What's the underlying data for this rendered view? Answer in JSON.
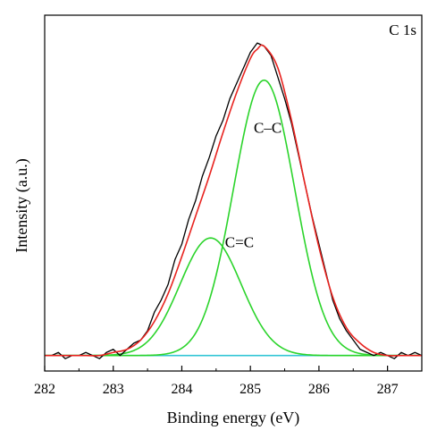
{
  "chart_data": {
    "type": "line",
    "title": "",
    "panel_label": "C 1s",
    "xlabel": "Binding energy (eV)",
    "ylabel": "Intensity (a.u.)",
    "xlim": [
      282,
      287.5
    ],
    "ylim": [
      -0.05,
      1.1
    ],
    "x_ticks": [
      282,
      283,
      284,
      285,
      286,
      287
    ],
    "x_tick_labels": [
      "282",
      "283",
      "284",
      "285",
      "286",
      "287"
    ],
    "y_ticks_shown": false,
    "grid": false,
    "legend": "none",
    "colors": {
      "raw": "#000000",
      "envelope": "#e8231f",
      "components": "#2bd42b",
      "baseline": "#33c6d6"
    },
    "annotations": [
      {
        "text": "C–C",
        "x": 285.05,
        "y": 0.72
      },
      {
        "text": "C=C",
        "x": 284.63,
        "y": 0.35
      }
    ],
    "baseline": {
      "x": [
        282,
        287.5
      ],
      "y": [
        0,
        0
      ]
    },
    "components": [
      {
        "label": "C–C",
        "center": 285.2,
        "fwhm": 1.05,
        "height": 0.89
      },
      {
        "label": "C=C",
        "center": 284.42,
        "fwhm": 1.05,
        "height": 0.38
      }
    ],
    "series": [
      {
        "role": "raw",
        "x": [
          282.0,
          282.1,
          282.2,
          282.3,
          282.4,
          282.5,
          282.6,
          282.7,
          282.8,
          282.9,
          283.0,
          283.1,
          283.2,
          283.3,
          283.4,
          283.5,
          283.6,
          283.7,
          283.8,
          283.9,
          284.0,
          284.1,
          284.2,
          284.3,
          284.4,
          284.5,
          284.6,
          284.7,
          284.8,
          284.9,
          285.0,
          285.1,
          285.2,
          285.3,
          285.4,
          285.5,
          285.6,
          285.7,
          285.8,
          285.9,
          286.0,
          286.1,
          286.2,
          286.3,
          286.4,
          286.5,
          286.6,
          286.7,
          286.8,
          286.9,
          287.0,
          287.1,
          287.2,
          287.3,
          287.4,
          287.5
        ],
        "y": [
          0.0,
          0.0,
          0.01,
          -0.01,
          0.0,
          0.0,
          0.01,
          0.0,
          -0.01,
          0.01,
          0.02,
          0.0,
          0.02,
          0.04,
          0.05,
          0.08,
          0.14,
          0.18,
          0.23,
          0.31,
          0.36,
          0.44,
          0.5,
          0.58,
          0.64,
          0.71,
          0.76,
          0.83,
          0.88,
          0.93,
          0.98,
          1.01,
          1.0,
          0.97,
          0.9,
          0.83,
          0.75,
          0.65,
          0.55,
          0.45,
          0.36,
          0.27,
          0.18,
          0.12,
          0.08,
          0.05,
          0.02,
          0.01,
          0.0,
          0.01,
          0.0,
          -0.01,
          0.01,
          0.0,
          0.01,
          0.0
        ]
      },
      {
        "role": "envelope",
        "x": [
          282.0,
          282.2,
          282.4,
          282.6,
          282.8,
          283.0,
          283.2,
          283.4,
          283.6,
          283.8,
          284.0,
          284.2,
          284.4,
          284.6,
          284.8,
          285.0,
          285.1,
          285.2,
          285.4,
          285.6,
          285.8,
          286.0,
          286.2,
          286.4,
          286.6,
          286.8,
          287.0,
          287.2,
          287.5
        ],
        "y": [
          0.0,
          0.0,
          0.0,
          0.0,
          0.0,
          0.01,
          0.02,
          0.05,
          0.11,
          0.2,
          0.32,
          0.45,
          0.58,
          0.72,
          0.85,
          0.96,
          0.99,
          1.0,
          0.93,
          0.76,
          0.55,
          0.35,
          0.19,
          0.09,
          0.04,
          0.01,
          0.0,
          0.0,
          0.0
        ]
      }
    ]
  }
}
